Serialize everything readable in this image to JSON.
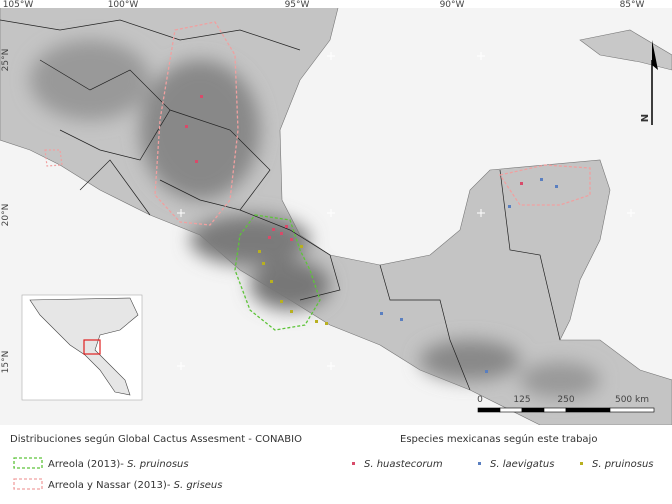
{
  "map": {
    "longitude_labels": [
      "105°W",
      "100°W",
      "95°W",
      "90°W",
      "85°W"
    ],
    "latitude_labels": [
      "25°N",
      "20°N",
      "15°N"
    ],
    "north": "N",
    "scale_labels": [
      "0",
      "125",
      "250",
      "500 km"
    ]
  },
  "legend_left": {
    "title": "Distribuciones según Global Cactus Assesment - CONABIO",
    "items": [
      {
        "prefix": "Arreola (2013)-",
        "species": "S. pruinosus"
      },
      {
        "prefix": "Arreola y Nassar (2013)-",
        "species": "S. griseus"
      }
    ]
  },
  "legend_right": {
    "title": "Especies mexicanas según este trabajo",
    "items": [
      "S. huastecorum",
      "S. laevigatus",
      "S. pruinosus"
    ]
  }
}
